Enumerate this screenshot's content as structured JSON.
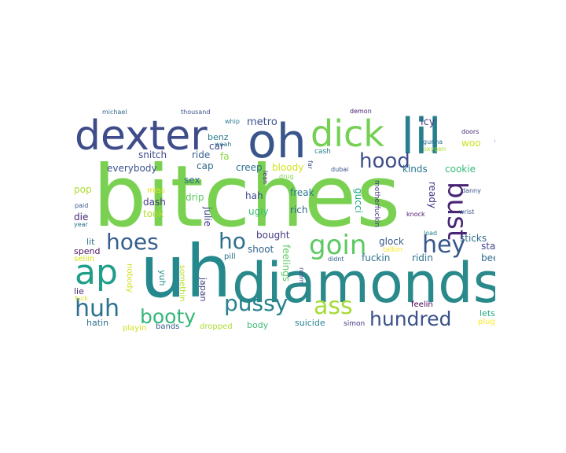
{
  "cloud": {
    "words": [
      {
        "text": "bitches",
        "color": "#7ad151"
      },
      {
        "text": "uh",
        "color": "#25888d"
      },
      {
        "text": "diamonds",
        "color": "#2a8a8b"
      },
      {
        "text": "dexter",
        "color": "#3e4c8a"
      },
      {
        "text": "oh",
        "color": "#39568c"
      },
      {
        "text": "dick",
        "color": "#75d054"
      },
      {
        "text": "lil",
        "color": "#277f8e"
      },
      {
        "text": "ap",
        "color": "#1f9e89"
      },
      {
        "text": "bust",
        "color": "#482475"
      },
      {
        "text": "hood",
        "color": "#3d4d8a"
      },
      {
        "text": "hoes",
        "color": "#355f8d"
      },
      {
        "text": "goin",
        "color": "#5ec962"
      },
      {
        "text": "hey",
        "color": "#38578c"
      },
      {
        "text": "ho",
        "color": "#2d6f8e"
      },
      {
        "text": "huh",
        "color": "#2c718e"
      },
      {
        "text": "pussy",
        "color": "#26828e"
      },
      {
        "text": "ass",
        "color": "#a5db36"
      },
      {
        "text": "booty",
        "color": "#35b779"
      },
      {
        "text": "hundred",
        "color": "#3b518b"
      },
      {
        "text": "metro",
        "color": "#3b528b"
      },
      {
        "text": "icy",
        "color": "#433e85"
      },
      {
        "text": "car",
        "color": "#3e4989"
      },
      {
        "text": "ride",
        "color": "#355f8d"
      },
      {
        "text": "snitch",
        "color": "#3e4989"
      },
      {
        "text": "fa",
        "color": "#90d743"
      },
      {
        "text": "creep",
        "color": "#2e6e8e"
      },
      {
        "text": "bloody",
        "color": "#d2e21b"
      },
      {
        "text": "benz",
        "color": "#287c8e"
      },
      {
        "text": "woo",
        "color": "#c8e020"
      },
      {
        "text": "cap",
        "color": "#31688e"
      },
      {
        "text": "everybody",
        "color": "#3b528b"
      },
      {
        "text": "kinds",
        "color": "#2a788e"
      },
      {
        "text": "cookie",
        "color": "#38b977"
      },
      {
        "text": "riding",
        "color": "#33638d"
      },
      {
        "text": "pop",
        "color": "#addc30"
      },
      {
        "text": "sex",
        "color": "#31688e"
      },
      {
        "text": "drip",
        "color": "#5ec962"
      },
      {
        "text": "dash",
        "color": "#443983"
      },
      {
        "text": "hah",
        "color": "#3e4989"
      },
      {
        "text": "freak",
        "color": "#2a788e"
      },
      {
        "text": "rich",
        "color": "#31688e"
      },
      {
        "text": "took",
        "color": "#b5de2b"
      },
      {
        "text": "miss",
        "color": "#e5e419"
      },
      {
        "text": "die",
        "color": "#482475"
      },
      {
        "text": "ugly",
        "color": "#3bbb75"
      },
      {
        "text": "julie",
        "color": "#414487"
      },
      {
        "text": "gucci",
        "color": "#22a785"
      },
      {
        "text": "ready",
        "color": "#46327e"
      },
      {
        "text": "hoes_lit",
        "text_alias": "lit",
        "color": "#2c728e"
      },
      {
        "text": "bought",
        "color": "#443983"
      },
      {
        "text": "glock",
        "color": "#38588c"
      },
      {
        "text": "sticks",
        "color": "#2f6c8e"
      },
      {
        "text": "star",
        "color": "#404688"
      },
      {
        "text": "spend",
        "color": "#471365"
      },
      {
        "text": "shoot",
        "color": "#33638d"
      },
      {
        "text": "fuckin",
        "color": "#2e6e8e"
      },
      {
        "text": "ridin",
        "color": "#2d708e"
      },
      {
        "text": "beep",
        "color": "#2e6d8e"
      },
      {
        "text": "sellin",
        "color": "#d8e219"
      },
      {
        "text": "pill",
        "color": "#2c728e"
      },
      {
        "text": "feelings",
        "color": "#5ec962"
      },
      {
        "text": "yuh",
        "color": "#21918c"
      },
      {
        "text": "japan",
        "color": "#433e85"
      },
      {
        "text": "nobody",
        "color": "#cde11d"
      },
      {
        "text": "somethin",
        "color": "#b8de29"
      },
      {
        "text": "lie",
        "color": "#482878"
      },
      {
        "text": "feelin",
        "color": "#440154"
      },
      {
        "text": "lets",
        "color": "#22a884"
      },
      {
        "text": "plug",
        "color": "#fde725"
      },
      {
        "text": "hatin",
        "color": "#2c728e"
      },
      {
        "text": "playin",
        "color": "#d0e11c"
      },
      {
        "text": "bands",
        "color": "#355f8d"
      },
      {
        "text": "dropped",
        "color": "#addc30"
      },
      {
        "text": "body",
        "color": "#3dbc74"
      },
      {
        "text": "suicide",
        "color": "#25838e"
      },
      {
        "text": "simon",
        "color": "#46337f"
      },
      {
        "text": "michael",
        "color": "#31688e"
      },
      {
        "text": "thousand",
        "color": "#3b528b"
      },
      {
        "text": "whip",
        "color": "#2a788e"
      },
      {
        "text": "woah",
        "color": "#2c728e"
      },
      {
        "text": "demon",
        "color": "#481a6c"
      },
      {
        "text": "doors",
        "color": "#472a7a"
      },
      {
        "text": "gunna",
        "color": "#2e6f8e"
      },
      {
        "text": "oxygen",
        "color": "#a8db34"
      },
      {
        "text": "cash",
        "color": "#26828e"
      },
      {
        "text": "far",
        "color": "#3b528b"
      },
      {
        "text": "lean",
        "color": "#482576"
      },
      {
        "text": "drug",
        "color": "#7fd34e"
      },
      {
        "text": "dubai",
        "color": "#3b528b"
      },
      {
        "text": "paid",
        "color": "#38598c"
      },
      {
        "text": "year",
        "color": "#2e6e8e"
      },
      {
        "text": "danny",
        "color": "#3b528b"
      },
      {
        "text": "knock",
        "color": "#481467"
      },
      {
        "text": "wrist",
        "color": "#3b528b"
      },
      {
        "text": "motherfuckin",
        "color": "#453781"
      },
      {
        "text": "talkin",
        "color": "#fde725"
      },
      {
        "text": "load",
        "color": "#287d8e"
      },
      {
        "text": "didnt",
        "color": "#33638d"
      },
      {
        "text": "fuck",
        "color": "#dde318"
      },
      {
        "text": "room",
        "color": "#3f4788"
      }
    ]
  }
}
